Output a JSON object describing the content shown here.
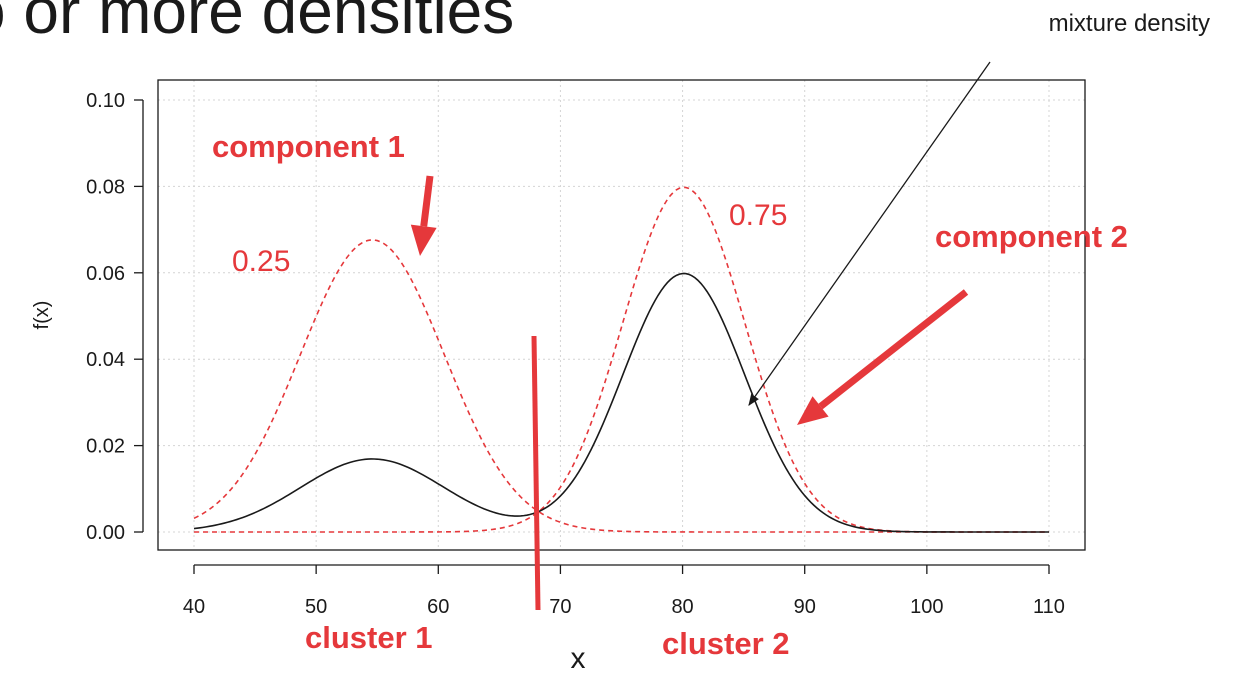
{
  "slide": {
    "title": "o or more densities"
  },
  "chart_data": {
    "type": "line",
    "xlabel": "x",
    "ylabel": "f(x)",
    "xlim": [
      40,
      110
    ],
    "ylim": [
      0,
      0.1
    ],
    "x_ticks": [
      "40",
      "50",
      "60",
      "70",
      "80",
      "90",
      "100",
      "110"
    ],
    "y_ticks": [
      "0.00",
      "0.02",
      "0.04",
      "0.06",
      "0.08",
      "0.10"
    ],
    "grid": true,
    "series": [
      {
        "name": "component 1",
        "style": "dashed",
        "color": "#e5383b",
        "mean": 54.6,
        "sd": 5.9,
        "weight": 0.25
      },
      {
        "name": "component 2",
        "style": "dashed",
        "color": "#e5383b",
        "mean": 80.1,
        "sd": 5.0,
        "weight": 0.75
      },
      {
        "name": "mixture density",
        "style": "solid",
        "color": "#1a1a1a"
      }
    ],
    "cluster_boundary_x": 68,
    "annotations": {
      "component1": "component 1",
      "component2": "component 2",
      "weight1": "0.25",
      "weight2": "0.75",
      "mixture": "mixture density",
      "cluster1": "cluster 1",
      "cluster2": "cluster 2"
    },
    "colors": {
      "annotation": "#e5383b",
      "mixture": "#1a1a1a",
      "grid": "#d4d4d4"
    }
  }
}
